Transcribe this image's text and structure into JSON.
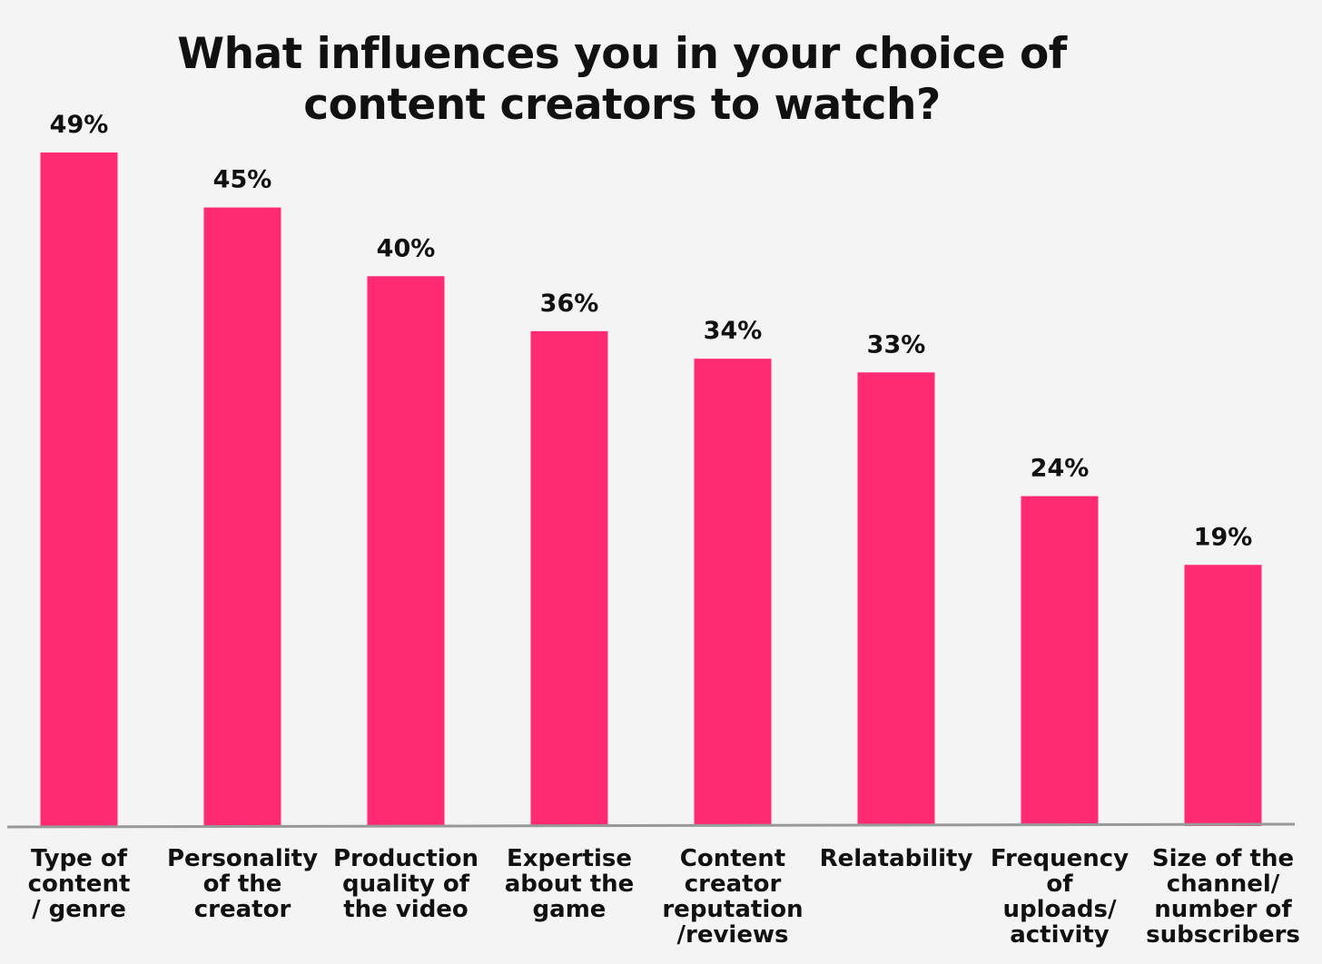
{
  "chart_data": {
    "type": "bar",
    "title": "What influences you in your choice of content creators to watch?",
    "categories": [
      "Type of\ncontent\n/ genre",
      "Personality\nof the\ncreator",
      "Production\nquality of\nthe video",
      "Expertise\nabout the\ngame",
      "Content\ncreator\nreputation\n/reviews",
      "Relatability",
      "Frequency\nof\nuploads/\nactivity",
      "Size of the\nchannel/\nnumber of\nsubscribers"
    ],
    "values": [
      49,
      45,
      40,
      36,
      34,
      33,
      24,
      19
    ],
    "value_labels": [
      "49%",
      "45%",
      "40%",
      "36%",
      "34%",
      "33%",
      "24%",
      "19%"
    ],
    "ylim": [
      0,
      49
    ],
    "grid": false,
    "bar_color": "#ff2a72",
    "axis_color": "#999999"
  }
}
